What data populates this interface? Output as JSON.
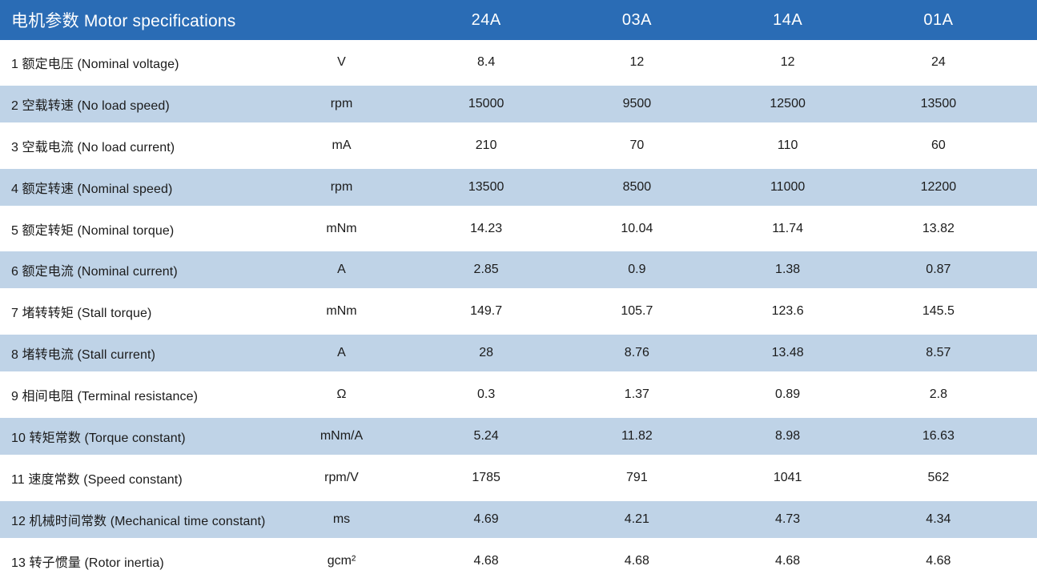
{
  "chart_data": {
    "type": "table",
    "title": "电机参数 Motor specifications",
    "columns": [
      "24A",
      "03A",
      "14A",
      "01A"
    ],
    "rows": [
      {
        "label": "1 额定电压 (Nominal voltage)",
        "unit": "V",
        "values": [
          "8.4",
          "12",
          "12",
          "24"
        ]
      },
      {
        "label": "2 空载转速 (No load speed)",
        "unit": "rpm",
        "values": [
          "15000",
          "9500",
          "12500",
          "13500"
        ]
      },
      {
        "label": "3 空载电流 (No load current)",
        "unit": "mA",
        "values": [
          "210",
          "70",
          "110",
          "60"
        ]
      },
      {
        "label": "4 额定转速 (Nominal speed)",
        "unit": "rpm",
        "values": [
          "13500",
          "8500",
          "11000",
          "12200"
        ]
      },
      {
        "label": "5 额定转矩 (Nominal torque)",
        "unit": "mNm",
        "values": [
          "14.23",
          "10.04",
          "11.74",
          "13.82"
        ]
      },
      {
        "label": "6 额定电流 (Nominal current)",
        "unit": "A",
        "values": [
          "2.85",
          "0.9",
          "1.38",
          "0.87"
        ]
      },
      {
        "label": "7 堵转转矩 (Stall torque)",
        "unit": "mNm",
        "values": [
          "149.7",
          "105.7",
          "123.6",
          "145.5"
        ]
      },
      {
        "label": "8 堵转电流 (Stall current)",
        "unit": "A",
        "values": [
          "28",
          "8.76",
          "13.48",
          "8.57"
        ]
      },
      {
        "label": "9 相间电阻 (Terminal resistance)",
        "unit": "Ω",
        "values": [
          "0.3",
          "1.37",
          "0.89",
          "2.8"
        ]
      },
      {
        "label": "10 转矩常数 (Torque constant)",
        "unit": "mNm/A",
        "values": [
          "5.24",
          "11.82",
          "8.98",
          "16.63"
        ]
      },
      {
        "label": "11 速度常数 (Speed constant)",
        "unit": "rpm/V",
        "values": [
          "1785",
          "791",
          "1041",
          "562"
        ]
      },
      {
        "label": "12 机械时间常数 (Mechanical time constant)",
        "unit": "ms",
        "values": [
          "4.69",
          "4.21",
          "4.73",
          "4.34"
        ]
      },
      {
        "label": "13 转子惯量 (Rotor inertia)",
        "unit": "gcm²",
        "values": [
          "4.68",
          "4.68",
          "4.68",
          "4.68"
        ]
      }
    ],
    "layout": {
      "alternating_row_shading": "even rows shaded",
      "legend_position": "none",
      "grid": "off"
    }
  },
  "colors": {
    "header_bg": "#2A6CB5",
    "alt_row_bg": "#BFD3E7",
    "header_text": "#FFFFFF",
    "body_text": "#1B1B1B"
  }
}
